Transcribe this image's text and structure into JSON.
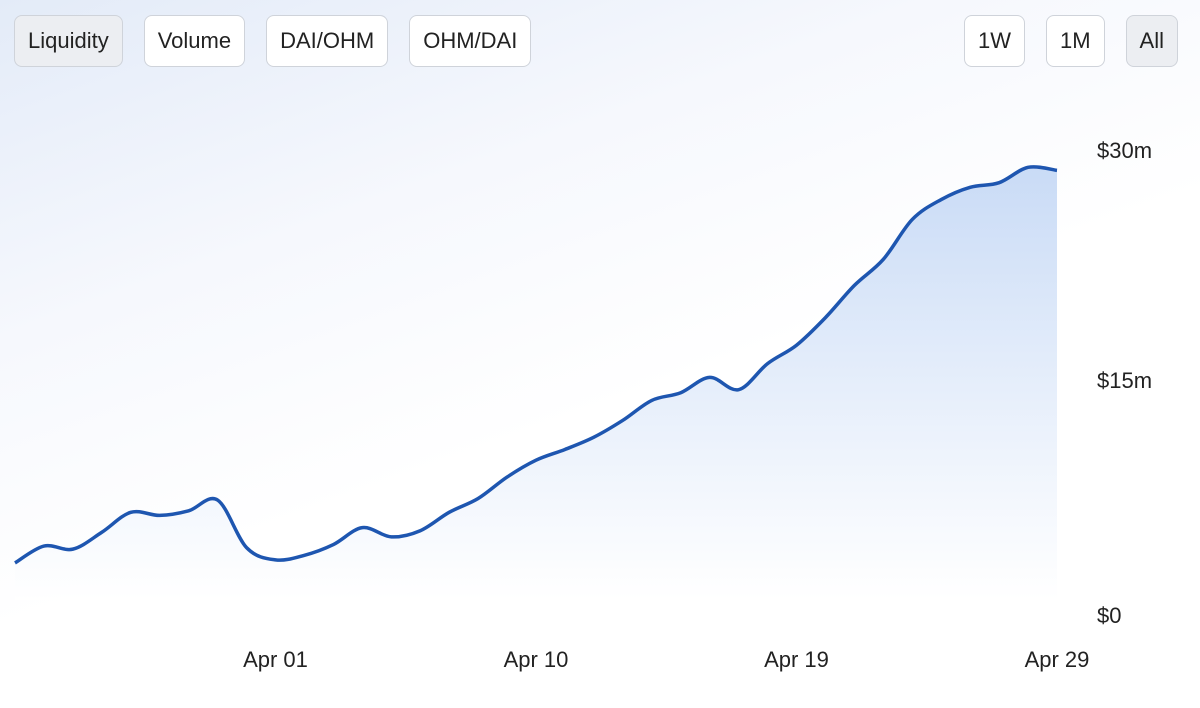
{
  "buttons": {
    "metric": [
      "Liquidity",
      "Volume",
      "DAI/OHM",
      "OHM/DAI"
    ],
    "range": [
      "1W",
      "1M",
      "All"
    ]
  },
  "chart_data": {
    "type": "area",
    "color": "#1e56b0",
    "categories": [
      null,
      null,
      null,
      null,
      null,
      null,
      null,
      null,
      null,
      "Apr 01",
      null,
      null,
      null,
      null,
      null,
      null,
      null,
      null,
      "Apr 10",
      null,
      null,
      null,
      null,
      null,
      null,
      null,
      null,
      "Apr 19",
      null,
      null,
      null,
      null,
      null,
      null,
      null,
      null,
      "Apr 29"
    ],
    "values": [
      3200000,
      4300000,
      4100000,
      5200000,
      6500000,
      6300000,
      6600000,
      7300000,
      4200000,
      3400000,
      3700000,
      4400000,
      5500000,
      4900000,
      5300000,
      6500000,
      7400000,
      8800000,
      9900000,
      10600000,
      11400000,
      12500000,
      13800000,
      14300000,
      15300000,
      14500000,
      16200000,
      17400000,
      19200000,
      21300000,
      23000000,
      25600000,
      26900000,
      27700000,
      28000000,
      29000000,
      28800000
    ],
    "ylim": [
      0,
      30000000
    ],
    "yticks": [
      {
        "value": 0,
        "label": "$0"
      },
      {
        "value": 15000000,
        "label": "$15m"
      },
      {
        "value": 30000000,
        "label": "$30m"
      }
    ]
  }
}
